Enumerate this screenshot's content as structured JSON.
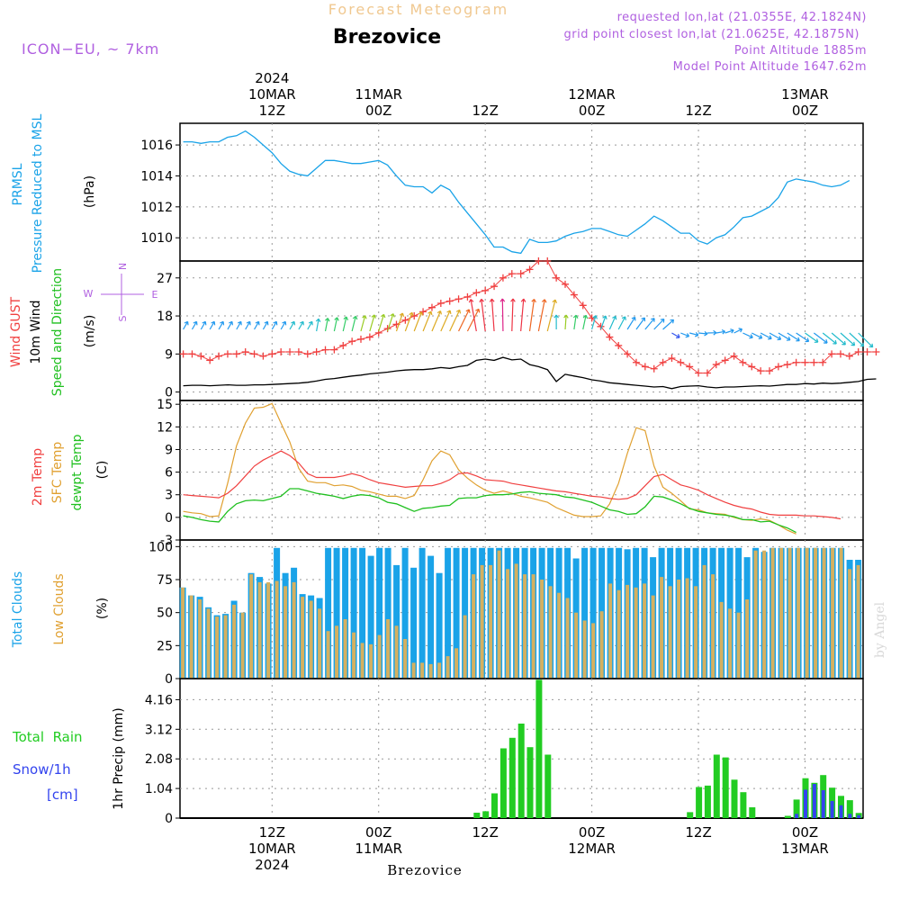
{
  "header": {
    "main_title": "Forecast Meteogram",
    "station": "Brezovice",
    "model": "ICON−EU, ~ 7km",
    "requested": "requested lon,lat (21.0355E, 42.1824N)",
    "grid": "grid point closest lon,lat (21.0625E, 42.1875N)",
    "point_alt": "Point Altitude 1885m",
    "model_alt": "Model Point Altitude 1647.62m",
    "footer_station": "Brezovice",
    "credit": "by Angel"
  },
  "colors": {
    "pressure": "#1aa3e8",
    "gust": "#f04040",
    "wind": "#000000",
    "temp2m": "#f04040",
    "sfc": "#e0a030",
    "dewpt": "#20c020",
    "total_clouds": "#1aa3e8",
    "low_clouds": "#d4b060",
    "rain": "#22cc22",
    "snow": "#3344ee",
    "purple": "#b060e0"
  },
  "time_axis": {
    "top_labels": [
      {
        "step": 10,
        "lines": [
          "2024",
          "10MAR",
          "12Z"
        ]
      },
      {
        "step": 22,
        "lines": [
          "11MAR",
          "00Z"
        ]
      },
      {
        "step": 34,
        "lines": [
          "12Z"
        ]
      },
      {
        "step": 46,
        "lines": [
          "12MAR",
          "00Z"
        ]
      },
      {
        "step": 58,
        "lines": [
          "12Z"
        ]
      },
      {
        "step": 70,
        "lines": [
          "13MAR",
          "00Z"
        ]
      }
    ],
    "bottom_labels": [
      {
        "step": 10,
        "lines": [
          "12Z",
          "10MAR",
          "2024"
        ]
      },
      {
        "step": 22,
        "lines": [
          "00Z",
          "11MAR"
        ]
      },
      {
        "step": 34,
        "lines": [
          "12Z"
        ]
      },
      {
        "step": 46,
        "lines": [
          "00Z",
          "12MAR"
        ]
      },
      {
        "step": 58,
        "lines": [
          "12Z"
        ]
      },
      {
        "step": 70,
        "lines": [
          "00Z",
          "13MAR"
        ]
      }
    ]
  },
  "chart_data": [
    {
      "type": "line",
      "panel": "pressure",
      "ylabel_lines": [
        "PRMSL",
        "Pressure Reduced to MSL"
      ],
      "unit": "(hPa)",
      "yticks": [
        1010,
        1012,
        1014,
        1016
      ],
      "ylim": [
        1008.5,
        1017.4
      ],
      "series": [
        {
          "name": "PRMSL",
          "values": [
            1016.2,
            1016.2,
            1016.1,
            1016.2,
            1016.2,
            1016.5,
            1016.6,
            1016.9,
            1016.5,
            1016.0,
            1015.5,
            1014.8,
            1014.3,
            1014.1,
            1014.0,
            1014.5,
            1015.0,
            1015.0,
            1014.9,
            1014.8,
            1014.8,
            1014.9,
            1015.0,
            1014.7,
            1014.0,
            1013.4,
            1013.3,
            1013.3,
            1012.9,
            1013.4,
            1013.1,
            1012.3,
            1011.6,
            1010.9,
            1010.2,
            1009.4,
            1009.4,
            1009.1,
            1009.0,
            1009.9,
            1009.7,
            1009.7,
            1009.8,
            1010.1,
            1010.3,
            1010.4,
            1010.6,
            1010.6,
            1010.4,
            1010.2,
            1010.1,
            1010.5,
            1010.9,
            1011.4,
            1011.1,
            1010.7,
            1010.3,
            1010.3,
            1009.8,
            1009.6,
            1010.0,
            1010.2,
            1010.7,
            1011.3,
            1011.4,
            1011.7,
            1012.0,
            1012.6,
            1013.6,
            1013.8,
            1013.7,
            1013.6,
            1013.4,
            1013.3,
            1013.4,
            1013.7
          ]
        }
      ]
    },
    {
      "type": "line",
      "panel": "wind",
      "ylabel_lines": [
        "Wind GUST",
        "10m Wind",
        "Speed and Direction"
      ],
      "unit": "(m/s)",
      "compass": [
        "N",
        "S",
        "W",
        "E"
      ],
      "yticks": [
        0,
        9,
        18,
        27
      ],
      "ylim": [
        -2,
        31
      ],
      "series": [
        {
          "name": "Wind GUST",
          "values": [
            9.0,
            9.0,
            8.5,
            7.5,
            8.5,
            9.0,
            9.0,
            9.5,
            9.0,
            8.5,
            9.0,
            9.5,
            9.5,
            9.5,
            9.0,
            9.5,
            10.0,
            10.0,
            11.0,
            12.0,
            12.5,
            13.0,
            14.0,
            15.0,
            16.0,
            17.0,
            18.0,
            19.0,
            20.0,
            21.0,
            21.5,
            22.0,
            22.5,
            23.5,
            24.0,
            25.0,
            27.0,
            28.0,
            28.0,
            29.0,
            31.0,
            31.0,
            27.0,
            25.5,
            23.0,
            20.5,
            17.5,
            15.5,
            13.0,
            11.0,
            9.0,
            7.0,
            6.0,
            5.5,
            7.0,
            8.0,
            7.0,
            6.0,
            4.5,
            4.5,
            6.5,
            7.5,
            8.5,
            7.0,
            6.0,
            5.0,
            5.0,
            6.0,
            6.5,
            7.0,
            7.0,
            7.0,
            7.0,
            9.0,
            9.0,
            8.5,
            9.5,
            9.5,
            9.5
          ],
          "note": "gust trace as plotted"
        },
        {
          "name": "10m Wind",
          "values": [
            1.5,
            1.6,
            1.6,
            1.5,
            1.6,
            1.7,
            1.6,
            1.6,
            1.7,
            1.7,
            1.8,
            1.9,
            2.0,
            2.1,
            2.3,
            2.6,
            3.0,
            3.2,
            3.5,
            3.8,
            4.0,
            4.3,
            4.5,
            4.7,
            5.0,
            5.2,
            5.3,
            5.3,
            5.5,
            5.8,
            5.6,
            6.0,
            6.3,
            7.5,
            7.8,
            7.5,
            8.2,
            7.6,
            7.8,
            6.5,
            6.0,
            5.3,
            2.5,
            4.2,
            3.8,
            3.4,
            2.9,
            2.6,
            2.2,
            2.0,
            1.8,
            1.6,
            1.4,
            1.2,
            1.3,
            0.8,
            1.3,
            1.4,
            1.5,
            1.2,
            1.0,
            1.2,
            1.2,
            1.3,
            1.4,
            1.5,
            1.4,
            1.6,
            1.8,
            1.8,
            2.0,
            1.9,
            2.1,
            2.0,
            2.1,
            2.3,
            2.5,
            3.0,
            3.1
          ]
        }
      ]
    },
    {
      "type": "line",
      "panel": "temperature",
      "ylabel_lines": [
        "2m Temp",
        "SFC Temp",
        "dewpt Temp"
      ],
      "unit": "(C)",
      "yticks": [
        -3,
        0,
        3,
        6,
        9,
        12,
        15
      ],
      "ylim": [
        -3,
        15.5
      ],
      "series": [
        {
          "name": "2m Temp",
          "values": [
            3.0,
            2.9,
            2.8,
            2.7,
            2.6,
            3.2,
            4.2,
            5.5,
            6.8,
            7.6,
            8.2,
            8.8,
            8.2,
            7.2,
            5.8,
            5.3,
            5.3,
            5.3,
            5.5,
            5.8,
            5.5,
            5.0,
            4.6,
            4.4,
            4.2,
            4.0,
            4.1,
            4.2,
            4.2,
            4.5,
            5.0,
            5.8,
            5.9,
            5.5,
            5.0,
            4.9,
            4.8,
            4.5,
            4.3,
            4.1,
            3.9,
            3.7,
            3.5,
            3.4,
            3.2,
            3.0,
            2.8,
            2.7,
            2.5,
            2.4,
            2.5,
            3.0,
            4.2,
            5.4,
            5.7,
            5.0,
            4.3,
            4.0,
            3.6,
            3.0,
            2.5,
            2.0,
            1.6,
            1.3,
            1.1,
            0.7,
            0.4,
            0.3,
            0.3,
            0.3,
            0.2,
            0.2,
            0.1,
            0.0,
            -0.2
          ]
        },
        {
          "name": "SFC Temp",
          "values": [
            0.8,
            0.6,
            0.5,
            0.1,
            0.2,
            4.5,
            9.5,
            12.5,
            14.5,
            14.6,
            15.1,
            12.5,
            10.0,
            6.5,
            4.8,
            4.6,
            4.6,
            4.2,
            4.3,
            4.1,
            3.6,
            3.4,
            3.1,
            2.8,
            2.8,
            2.5,
            2.9,
            5.0,
            7.5,
            8.8,
            8.3,
            6.3,
            5.2,
            4.3,
            3.6,
            3.2,
            3.5,
            3.2,
            2.8,
            2.6,
            2.3,
            2.0,
            1.3,
            0.8,
            0.3,
            0.1,
            0.1,
            0.2,
            1.8,
            4.5,
            8.5,
            11.9,
            11.5,
            6.8,
            4.0,
            3.2,
            2.2,
            1.1,
            1.0,
            0.6,
            0.5,
            0.4,
            0.0,
            -0.3,
            -0.4,
            -0.2,
            -0.4,
            -1.0,
            -1.7,
            -2.2
          ]
        },
        {
          "name": "dewpt Temp",
          "values": [
            0.2,
            0.0,
            -0.3,
            -0.5,
            -0.6,
            0.8,
            1.8,
            2.2,
            2.3,
            2.2,
            2.5,
            2.8,
            3.8,
            3.8,
            3.5,
            3.2,
            3.0,
            2.8,
            2.5,
            2.8,
            3.0,
            2.9,
            2.6,
            2.0,
            1.8,
            1.3,
            0.8,
            1.2,
            1.3,
            1.5,
            1.6,
            2.5,
            2.6,
            2.6,
            2.9,
            3.0,
            3.0,
            3.1,
            3.3,
            3.4,
            3.2,
            3.1,
            3.0,
            2.7,
            2.6,
            2.3,
            2.0,
            1.5,
            1.0,
            0.8,
            0.4,
            0.5,
            1.4,
            2.8,
            2.7,
            2.3,
            1.8,
            1.2,
            0.8,
            0.6,
            0.4,
            0.3,
            0.1,
            -0.3,
            -0.3,
            -0.6,
            -0.5,
            -1.0,
            -1.4,
            -2.0
          ]
        }
      ]
    },
    {
      "type": "bar",
      "panel": "clouds",
      "ylabel_lines": [
        "Total Clouds",
        "Low Clouds"
      ],
      "unit": "(%)",
      "yticks": [
        0,
        25,
        50,
        75,
        100
      ],
      "ylim": [
        0,
        105
      ],
      "series": [
        {
          "name": "Total Clouds",
          "values": [
            69,
            63,
            62,
            54,
            48,
            49,
            59,
            50,
            80,
            77,
            72,
            99,
            80,
            84,
            64,
            63,
            61,
            99,
            99,
            99,
            99,
            99,
            93,
            99,
            99,
            86,
            99,
            84,
            99,
            93,
            80,
            99,
            99,
            99,
            99,
            99,
            99,
            99,
            99,
            99,
            99,
            99,
            99,
            99,
            99,
            99,
            91,
            99,
            99,
            99,
            99,
            99,
            98,
            99,
            99,
            92,
            99,
            99,
            99,
            99,
            99,
            99,
            99,
            99,
            99,
            99,
            92,
            99,
            96,
            99,
            99,
            99,
            99,
            99,
            99,
            99,
            99,
            99,
            90,
            90
          ]
        },
        {
          "name": "Low Clouds",
          "values": [
            69,
            63,
            60,
            53,
            47,
            48,
            56,
            50,
            79,
            73,
            73,
            74,
            70,
            73,
            62,
            59,
            53,
            36,
            40,
            45,
            35,
            27,
            26,
            33,
            45,
            40,
            30,
            12,
            12,
            11,
            12,
            17,
            23,
            48,
            79,
            86,
            86,
            97,
            83,
            87,
            79,
            79,
            75,
            70,
            65,
            61,
            50,
            44,
            42,
            51,
            72,
            67,
            71,
            69,
            72,
            63,
            77,
            70,
            75,
            76,
            70,
            86,
            79,
            58,
            53,
            50,
            60,
            97,
            97,
            99,
            99,
            99,
            99,
            99,
            99,
            99,
            99,
            99,
            83,
            86
          ]
        }
      ]
    },
    {
      "type": "bar",
      "panel": "precip",
      "ylabel_lines": [
        "Total  Rain",
        "Snow/1h",
        "[cm]"
      ],
      "unit": "1hr Precip (mm)",
      "yticks": [
        0,
        1.04,
        2.08,
        3.12,
        4.16
      ],
      "ylim": [
        0,
        4.9
      ],
      "series": [
        {
          "name": "Total  Rain",
          "values": [
            0,
            0,
            0,
            0,
            0,
            0,
            0,
            0,
            0,
            0,
            0,
            0,
            0,
            0,
            0,
            0,
            0,
            0,
            0,
            0,
            0,
            0,
            0,
            0,
            0,
            0,
            0,
            0,
            0,
            0,
            0,
            0,
            0,
            0.19,
            0.24,
            0.87,
            2.45,
            2.82,
            3.32,
            2.49,
            4.86,
            2.23,
            0,
            0,
            0,
            0,
            0,
            0,
            0,
            0,
            0,
            0,
            0,
            0,
            0,
            0,
            0,
            0.21,
            1.09,
            1.14,
            2.23,
            2.13,
            1.35,
            0.91,
            0.38,
            0,
            0,
            0,
            0.08,
            0.65,
            1.4,
            1.24,
            1.51,
            1.07,
            0.78,
            0.63,
            0.18
          ]
        },
        {
          "name": "Snow/1h",
          "values": [
            0,
            0,
            0,
            0,
            0,
            0,
            0,
            0,
            0,
            0,
            0,
            0,
            0,
            0,
            0,
            0,
            0,
            0,
            0,
            0,
            0,
            0,
            0,
            0,
            0,
            0,
            0,
            0,
            0,
            0,
            0,
            0,
            0,
            0,
            0,
            0,
            0,
            0,
            0,
            0,
            0,
            0,
            0,
            0,
            0,
            0,
            0,
            0,
            0,
            0,
            0,
            0,
            0,
            0,
            0,
            0,
            0,
            0,
            0,
            0,
            0,
            0,
            0,
            0,
            0,
            0,
            0,
            0,
            0,
            0.15,
            1.0,
            1.2,
            0.98,
            0.6,
            0.45,
            0.15,
            0.1
          ]
        }
      ]
    }
  ]
}
